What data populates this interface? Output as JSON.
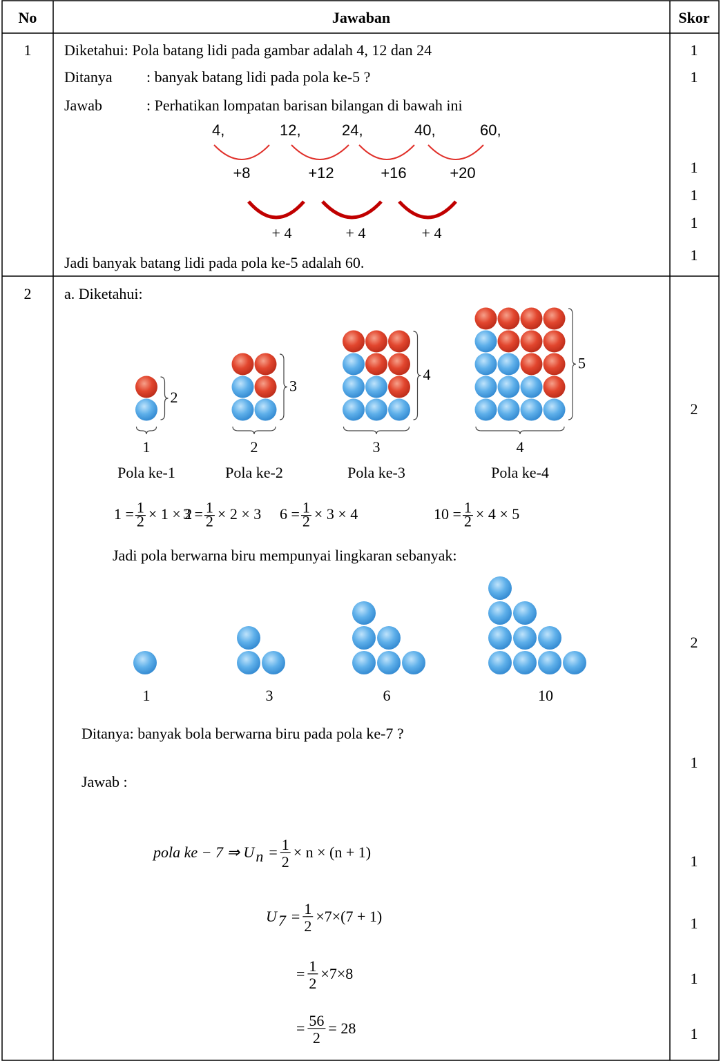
{
  "table": {
    "header": {
      "no": "No",
      "answer": "Jawaban",
      "score": "Skor"
    },
    "rows": [
      {
        "no": "1",
        "known": "Diketahui: Pola batang lidi pada gambar adalah 4, 12 dan 24",
        "asked_label": "Ditanya",
        "asked": ": banyak batang lidi pada pola ke-5 ?",
        "answer_label": "Jawab",
        "answer": ": Perhatikan lompatan barisan bilangan di bawah ini",
        "sequence": [
          "4,",
          "12,",
          "24,",
          "40,",
          "60,"
        ],
        "differences": [
          "+8",
          "+12",
          "+16",
          "+20"
        ],
        "second_differences": [
          "+ 4",
          "+ 4",
          "+ 4"
        ],
        "conclusion": "Jadi banyak batang lidi pada pola ke-5 adalah 60.",
        "scores": [
          1,
          1,
          1,
          1,
          1,
          1
        ]
      },
      {
        "no": "2",
        "known": "a.  Diketahui:",
        "patterns": [
          {
            "height": "2",
            "width": "1",
            "caption": "Pola ke-1",
            "formula": {
              "lhs": "1 =",
              "num": "1",
              "den": "2",
              "rhs": "× 1 × 2"
            }
          },
          {
            "height": "3",
            "width": "2",
            "caption": "Pola ke-2",
            "formula": {
              "lhs": "3 =",
              "num": "1",
              "den": "2",
              "rhs": "× 2 × 3"
            }
          },
          {
            "height": "4",
            "width": "3",
            "caption": "Pola ke-3",
            "formula": {
              "lhs": "6 =",
              "num": "1",
              "den": "2",
              "rhs": "× 3 × 4"
            }
          },
          {
            "height": "5",
            "width": "4",
            "caption": "Pola ke-4",
            "formula": {
              "lhs": "10 =",
              "num": "1",
              "den": "2",
              "rhs": "× 4 × 5"
            }
          }
        ],
        "blue_intro": "Jadi pola berwarna biru mempunyai lingkaran sebanyak:",
        "blue_counts": [
          "1",
          "3",
          "6",
          "10"
        ],
        "asked": "Ditanya: banyak bola berwarna biru pada pola ke-7 ?",
        "answer": "Jawab  :",
        "steps": [
          {
            "lhs": "pola ke − 7 ⇒ U",
            "sub": "n",
            "eq": "=",
            "num": "1",
            "den": "2",
            "rhs": "× n × (n + 1)"
          },
          {
            "lhs": "U",
            "sub": "7",
            "eq": "=",
            "num": "1",
            "den": "2",
            "rhs": "×7×(7 + 1)"
          },
          {
            "eq": "=",
            "num": "1",
            "den": "2",
            "rhs": "×7×8"
          },
          {
            "eq": "=",
            "num": "56",
            "den": "2",
            "rhs": "= 28"
          }
        ],
        "scores": [
          2,
          2,
          1,
          1,
          1,
          1,
          1
        ]
      }
    ]
  }
}
